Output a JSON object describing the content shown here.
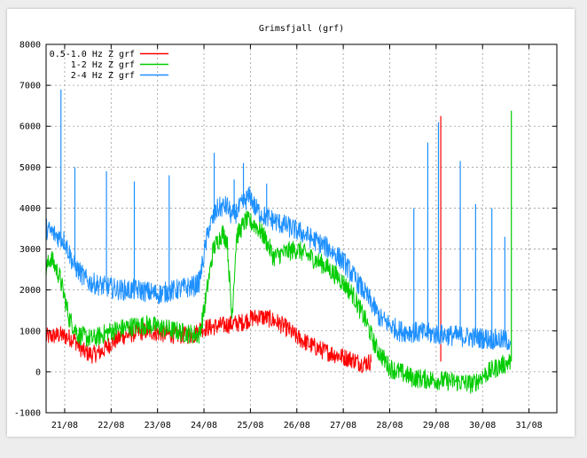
{
  "chart_data": {
    "type": "line",
    "title": "Grimsfjall (grf)",
    "xlabel": "",
    "ylabel": "",
    "ylim": [
      -1000,
      8000
    ],
    "yticks": [
      -1000,
      0,
      1000,
      2000,
      3000,
      4000,
      5000,
      6000,
      7000,
      8000
    ],
    "xlim": [
      20.6,
      31.6
    ],
    "xticks": [
      21,
      22,
      23,
      24,
      25,
      26,
      27,
      28,
      29,
      30,
      31
    ],
    "xtick_labels": [
      "21/08",
      "22/08",
      "23/08",
      "24/08",
      "25/08",
      "26/08",
      "27/08",
      "28/08",
      "29/08",
      "30/08",
      "31/08"
    ],
    "grid": true,
    "legend_position": "top-left",
    "series": [
      {
        "name": "0.5-1.0 Hz Z grf",
        "color": "#ff0000",
        "x": [
          20.6,
          20.9,
          21.2,
          21.4,
          21.6,
          21.8,
          22.0,
          22.2,
          22.5,
          22.8,
          23.0,
          23.4,
          23.8,
          23.9,
          24.2,
          24.5,
          24.8,
          25.0,
          25.2,
          25.4,
          25.6,
          25.8,
          26.0,
          26.3,
          26.6,
          26.9,
          27.2,
          27.4,
          27.6
        ],
        "y": [
          850,
          900,
          800,
          500,
          420,
          500,
          700,
          850,
          950,
          1000,
          950,
          900,
          900,
          1050,
          1100,
          1150,
          1200,
          1300,
          1350,
          1300,
          1200,
          1050,
          850,
          650,
          500,
          400,
          300,
          200,
          250
        ]
      },
      {
        "name": "1-2 Hz Z grf",
        "color": "#00cc00",
        "x": [
          20.6,
          20.7,
          20.9,
          21.1,
          21.3,
          21.6,
          22.0,
          22.4,
          22.8,
          23.2,
          23.6,
          23.9,
          24.0,
          24.2,
          24.4,
          24.5,
          24.6,
          24.7,
          24.9,
          25.1,
          25.3,
          25.5,
          25.7,
          26.0,
          26.3,
          26.6,
          26.9,
          27.2,
          27.5,
          27.7,
          28.0,
          28.5,
          29.0,
          29.5,
          29.8,
          30.0,
          30.3,
          30.6
        ],
        "y": [
          2500,
          2800,
          2300,
          1300,
          900,
          800,
          1000,
          1100,
          1150,
          1050,
          950,
          900,
          1500,
          3000,
          3400,
          3200,
          1300,
          3300,
          3700,
          3600,
          3300,
          2800,
          2900,
          3000,
          2800,
          2600,
          2300,
          1900,
          1200,
          600,
          100,
          -150,
          -200,
          -250,
          -300,
          -100,
          100,
          250
        ]
      },
      {
        "name": "2-4 Hz Z grf",
        "color": "#1e90ff",
        "x": [
          20.6,
          20.8,
          21.0,
          21.2,
          21.5,
          21.8,
          22.2,
          22.6,
          23.0,
          23.4,
          23.8,
          23.9,
          24.1,
          24.3,
          24.5,
          24.6,
          24.7,
          24.9,
          25.0,
          25.1,
          25.3,
          25.5,
          25.8,
          26.1,
          26.4,
          26.7,
          27.0,
          27.3,
          27.6,
          27.8,
          28.2,
          28.7,
          29.2,
          29.7,
          30.2,
          30.6
        ],
        "y": [
          3500,
          3350,
          3200,
          2600,
          2200,
          2100,
          2000,
          2000,
          1900,
          2000,
          2100,
          2200,
          3500,
          4000,
          4050,
          3800,
          3900,
          4200,
          4300,
          4000,
          3800,
          3700,
          3550,
          3400,
          3200,
          3000,
          2700,
          2200,
          1700,
          1300,
          1000,
          950,
          900,
          850,
          800,
          750
        ]
      }
    ],
    "spikes": [
      {
        "series": "2-4 Hz Z grf",
        "x": 20.92,
        "y": 6900
      },
      {
        "series": "2-4 Hz Z grf",
        "x": 21.22,
        "y": 5000
      },
      {
        "series": "2-4 Hz Z grf",
        "x": 21.9,
        "y": 4900
      },
      {
        "series": "2-4 Hz Z grf",
        "x": 22.5,
        "y": 4650
      },
      {
        "series": "2-4 Hz Z grf",
        "x": 23.25,
        "y": 4800
      },
      {
        "series": "2-4 Hz Z grf",
        "x": 24.22,
        "y": 5350
      },
      {
        "series": "2-4 Hz Z grf",
        "x": 24.65,
        "y": 4700
      },
      {
        "series": "2-4 Hz Z grf",
        "x": 24.85,
        "y": 5100
      },
      {
        "series": "2-4 Hz Z grf",
        "x": 25.35,
        "y": 4600
      },
      {
        "series": "2-4 Hz Z grf",
        "x": 28.52,
        "y": 4000
      },
      {
        "series": "2-4 Hz Z grf",
        "x": 28.82,
        "y": 5600
      },
      {
        "series": "0.5-1.0 Hz Z grf",
        "x": 29.1,
        "y": 6250
      },
      {
        "series": "2-4 Hz Z grf",
        "x": 29.05,
        "y": 6100
      },
      {
        "series": "2-4 Hz Z grf",
        "x": 29.52,
        "y": 5150
      },
      {
        "series": "2-4 Hz Z grf",
        "x": 29.85,
        "y": 4100
      },
      {
        "series": "2-4 Hz Z grf",
        "x": 30.2,
        "y": 4000
      },
      {
        "series": "2-4 Hz Z grf",
        "x": 30.48,
        "y": 3300
      },
      {
        "series": "1-2 Hz Z grf",
        "x": 30.62,
        "y": 6380
      }
    ]
  }
}
